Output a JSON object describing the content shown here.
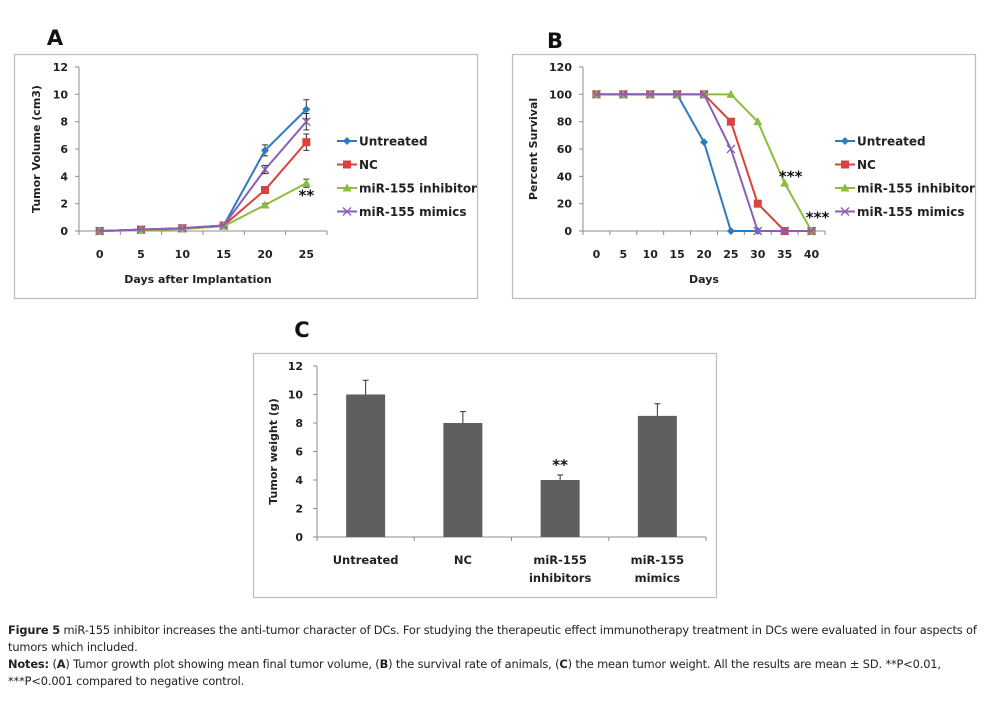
{
  "chart_data": [
    {
      "panel": "A",
      "type": "line",
      "title": "",
      "xlabel": "Days after Implantation",
      "ylabel": "Tumor Volume (cm3)",
      "categories": [
        "0",
        "5",
        "10",
        "15",
        "20",
        "25"
      ],
      "yticks": [
        "0",
        "2",
        "4",
        "6",
        "8",
        "10",
        "12"
      ],
      "ylim": [
        0,
        12
      ],
      "grid": false,
      "legend_position": "right",
      "series": [
        {
          "name": "Untreated",
          "color": "#2e7bbf",
          "marker": "diamond",
          "values": [
            0,
            0.1,
            0.2,
            0.4,
            5.9,
            8.9
          ],
          "errors": [
            0,
            0,
            0,
            0,
            0.4,
            0.7
          ]
        },
        {
          "name": "NC",
          "color": "#d9433f",
          "marker": "square",
          "values": [
            0,
            0.1,
            0.2,
            0.4,
            3.0,
            6.5
          ],
          "errors": [
            0,
            0,
            0,
            0,
            0.2,
            0.6
          ]
        },
        {
          "name": "miR-155 inhibitor",
          "color": "#8cbd3f",
          "marker": "triangle",
          "values": [
            0,
            0.05,
            0.15,
            0.35,
            1.9,
            3.5
          ],
          "errors": [
            0,
            0,
            0,
            0,
            0.1,
            0.3
          ]
        },
        {
          "name": "miR-155 mimics",
          "color": "#8a5fb5",
          "marker": "x",
          "values": [
            0,
            0.1,
            0.2,
            0.4,
            4.5,
            8.0
          ],
          "errors": [
            0,
            0,
            0,
            0,
            0.3,
            0.6
          ]
        }
      ],
      "annotations": [
        {
          "text": "**",
          "x": "25",
          "y": 2.6
        }
      ]
    },
    {
      "panel": "B",
      "type": "line",
      "title": "",
      "xlabel": "Days",
      "ylabel": "Percent Survival",
      "categories": [
        "0",
        "5",
        "10",
        "15",
        "20",
        "25",
        "30",
        "35",
        "40"
      ],
      "yticks": [
        "0",
        "20",
        "40",
        "60",
        "80",
        "100",
        "120"
      ],
      "ylim": [
        0,
        120
      ],
      "grid": false,
      "legend_position": "right",
      "series": [
        {
          "name": "Untreated",
          "color": "#2e7bbf",
          "marker": "diamond",
          "values": [
            100,
            100,
            100,
            100,
            65,
            0,
            0,
            0,
            0
          ]
        },
        {
          "name": "NC",
          "color": "#d9433f",
          "marker": "square",
          "values": [
            100,
            100,
            100,
            100,
            100,
            80,
            20,
            0,
            0
          ]
        },
        {
          "name": "miR-155 inhibitor",
          "color": "#8cbd3f",
          "marker": "triangle",
          "values": [
            100,
            100,
            100,
            100,
            100,
            100,
            80,
            35,
            0
          ]
        },
        {
          "name": "miR-155 mimics",
          "color": "#8a5fb5",
          "marker": "x",
          "values": [
            100,
            100,
            100,
            100,
            100,
            60,
            0,
            0,
            0
          ]
        }
      ],
      "annotations": [
        {
          "text": "***",
          "x": "35",
          "y": 40
        },
        {
          "text": "***",
          "x": "40",
          "y": 10
        }
      ]
    },
    {
      "panel": "C",
      "type": "bar",
      "title": "",
      "xlabel": "",
      "ylabel": "Tumor weight (g)",
      "categories": [
        [
          "Untreated"
        ],
        [
          "NC"
        ],
        [
          "miR-155",
          "inhibitors"
        ],
        [
          "miR-155",
          "mimics"
        ]
      ],
      "values": [
        10,
        8,
        4,
        8.5
      ],
      "errors": [
        1.0,
        0.8,
        0.35,
        0.85
      ],
      "yticks": [
        "0",
        "2",
        "4",
        "6",
        "8",
        "10",
        "12"
      ],
      "ylim": [
        0,
        12
      ],
      "bar_color": "#5f5f5f",
      "grid": false,
      "annotations": [
        {
          "text": "**",
          "category": 2
        }
      ]
    }
  ],
  "caption": {
    "figure_label": "Figure 5",
    "figure_text": " miR-155 inhibitor increases the anti-tumor character of DCs. For studying the therapeutic effect immunotherapy treatment in DCs were evaluated in four aspects of tumors which included.",
    "notes_label": "Notes:",
    "notes_parts": [
      {
        "t": " (",
        "b": false
      },
      {
        "t": "A",
        "b": true
      },
      {
        "t": ") Tumor growth plot showing mean final tumor volume, (",
        "b": false
      },
      {
        "t": "B",
        "b": true
      },
      {
        "t": ") the survival rate of animals, (",
        "b": false
      },
      {
        "t": "C",
        "b": true
      },
      {
        "t": ") the mean tumor weight. All the results are mean ± SD. **P<0.01, ***P<0.001 compared to negative control.",
        "b": false
      }
    ]
  }
}
